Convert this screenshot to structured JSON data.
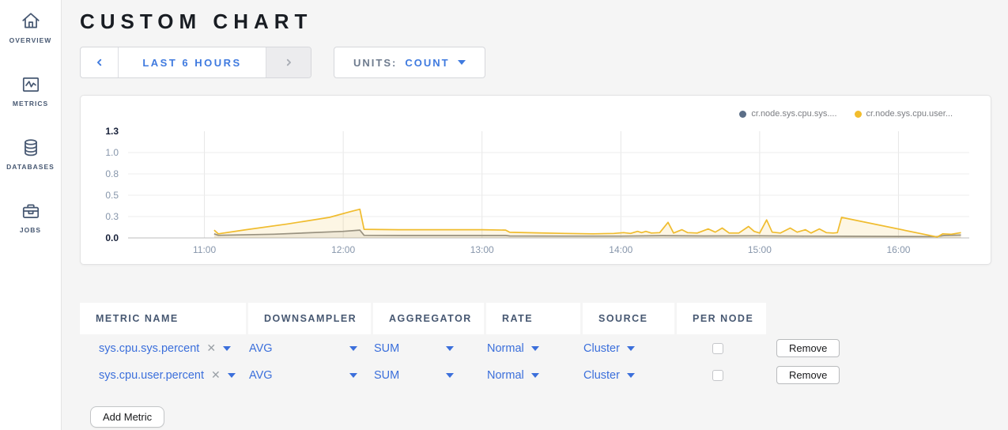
{
  "sidebar": {
    "items": [
      {
        "label": "OVERVIEW",
        "icon": "home-icon"
      },
      {
        "label": "METRICS",
        "icon": "metrics-icon"
      },
      {
        "label": "DATABASES",
        "icon": "database-icon"
      },
      {
        "label": "JOBS",
        "icon": "briefcase-icon"
      }
    ]
  },
  "header": {
    "title": "CUSTOM CHART"
  },
  "toolbar": {
    "time_range": "LAST 6 HOURS",
    "units_label": "UNITS:",
    "units_value": "COUNT"
  },
  "chart": {
    "legend": [
      {
        "label": "cr.node.sys.cpu.sys....",
        "color": "#5b6e87"
      },
      {
        "label": "cr.node.sys.cpu.user...",
        "color": "#f2bd2d"
      }
    ]
  },
  "chart_data": {
    "type": "line",
    "title": "",
    "xlabel": "",
    "ylabel": "",
    "grid": true,
    "legend_position": "top-right",
    "xlim": [
      10.45,
      16.51
    ],
    "ylim": [
      0,
      1.3
    ],
    "x_ticks": [
      {
        "v": 11,
        "label": "11:00"
      },
      {
        "v": 12,
        "label": "12:00"
      },
      {
        "v": 13,
        "label": "13:00"
      },
      {
        "v": 14,
        "label": "14:00"
      },
      {
        "v": 15,
        "label": "15:00"
      },
      {
        "v": 16,
        "label": "16:00"
      }
    ],
    "y_ticks": [
      {
        "v": 0.0,
        "label": "0.0",
        "bold": true
      },
      {
        "v": 0.26,
        "label": "0.3"
      },
      {
        "v": 0.52,
        "label": "0.5"
      },
      {
        "v": 0.78,
        "label": "0.8"
      },
      {
        "v": 1.04,
        "label": "1.0"
      },
      {
        "v": 1.3,
        "label": "1.3",
        "bold": true
      }
    ],
    "series": [
      {
        "name": "cr.node.sys.cpu.sys....",
        "color": "#8d8d8d",
        "fill": "rgba(150,150,150,0.14)",
        "points": [
          [
            11.07,
            0.05
          ],
          [
            11.1,
            0.032
          ],
          [
            11.5,
            0.045
          ],
          [
            12.0,
            0.08
          ],
          [
            12.12,
            0.095
          ],
          [
            12.15,
            0.032
          ],
          [
            12.5,
            0.03
          ],
          [
            13.0,
            0.03
          ],
          [
            13.17,
            0.03
          ],
          [
            13.2,
            0.024
          ],
          [
            13.6,
            0.022
          ],
          [
            14.0,
            0.022
          ],
          [
            14.3,
            0.028
          ],
          [
            14.6,
            0.024
          ],
          [
            15.0,
            0.026
          ],
          [
            15.3,
            0.022
          ],
          [
            15.6,
            0.02
          ],
          [
            16.0,
            0.018
          ],
          [
            16.28,
            0.016
          ],
          [
            16.33,
            0.03
          ],
          [
            16.45,
            0.035
          ]
        ]
      },
      {
        "name": "cr.node.sys.cpu.user...",
        "color": "#f0bc2e",
        "fill": "rgba(242,189,45,0.13)",
        "points": [
          [
            11.07,
            0.095
          ],
          [
            11.1,
            0.05
          ],
          [
            11.3,
            0.1
          ],
          [
            11.6,
            0.17
          ],
          [
            11.9,
            0.25
          ],
          [
            12.05,
            0.32
          ],
          [
            12.12,
            0.35
          ],
          [
            12.15,
            0.105
          ],
          [
            12.4,
            0.1
          ],
          [
            12.7,
            0.1
          ],
          [
            13.0,
            0.1
          ],
          [
            13.17,
            0.095
          ],
          [
            13.2,
            0.068
          ],
          [
            13.4,
            0.062
          ],
          [
            13.6,
            0.055
          ],
          [
            13.8,
            0.05
          ],
          [
            13.95,
            0.055
          ],
          [
            14.02,
            0.065
          ],
          [
            14.07,
            0.055
          ],
          [
            14.12,
            0.08
          ],
          [
            14.15,
            0.065
          ],
          [
            14.18,
            0.08
          ],
          [
            14.22,
            0.06
          ],
          [
            14.28,
            0.065
          ],
          [
            14.34,
            0.19
          ],
          [
            14.38,
            0.06
          ],
          [
            14.44,
            0.1
          ],
          [
            14.48,
            0.065
          ],
          [
            14.55,
            0.06
          ],
          [
            14.63,
            0.11
          ],
          [
            14.68,
            0.07
          ],
          [
            14.73,
            0.12
          ],
          [
            14.78,
            0.06
          ],
          [
            14.85,
            0.06
          ],
          [
            14.92,
            0.14
          ],
          [
            14.96,
            0.08
          ],
          [
            15.0,
            0.06
          ],
          [
            15.05,
            0.22
          ],
          [
            15.09,
            0.07
          ],
          [
            15.15,
            0.06
          ],
          [
            15.22,
            0.12
          ],
          [
            15.27,
            0.07
          ],
          [
            15.33,
            0.1
          ],
          [
            15.37,
            0.06
          ],
          [
            15.43,
            0.11
          ],
          [
            15.48,
            0.065
          ],
          [
            15.53,
            0.06
          ],
          [
            15.56,
            0.065
          ],
          [
            15.59,
            0.25
          ],
          [
            16.28,
            0.012
          ],
          [
            16.32,
            0.05
          ],
          [
            16.38,
            0.045
          ],
          [
            16.45,
            0.065
          ]
        ]
      }
    ]
  },
  "metrics_table": {
    "headers": [
      "METRIC NAME",
      "DOWNSAMPLER",
      "AGGREGATOR",
      "RATE",
      "SOURCE",
      "PER NODE"
    ],
    "rows": [
      {
        "metric": "sys.cpu.sys.percent",
        "downsampler": "AVG",
        "aggregator": "SUM",
        "rate": "Normal",
        "source": "Cluster",
        "per_node": false,
        "remove_label": "Remove"
      },
      {
        "metric": "sys.cpu.user.percent",
        "downsampler": "AVG",
        "aggregator": "SUM",
        "rate": "Normal",
        "source": "Cluster",
        "per_node": false,
        "remove_label": "Remove"
      }
    ],
    "add_button": "Add Metric"
  }
}
